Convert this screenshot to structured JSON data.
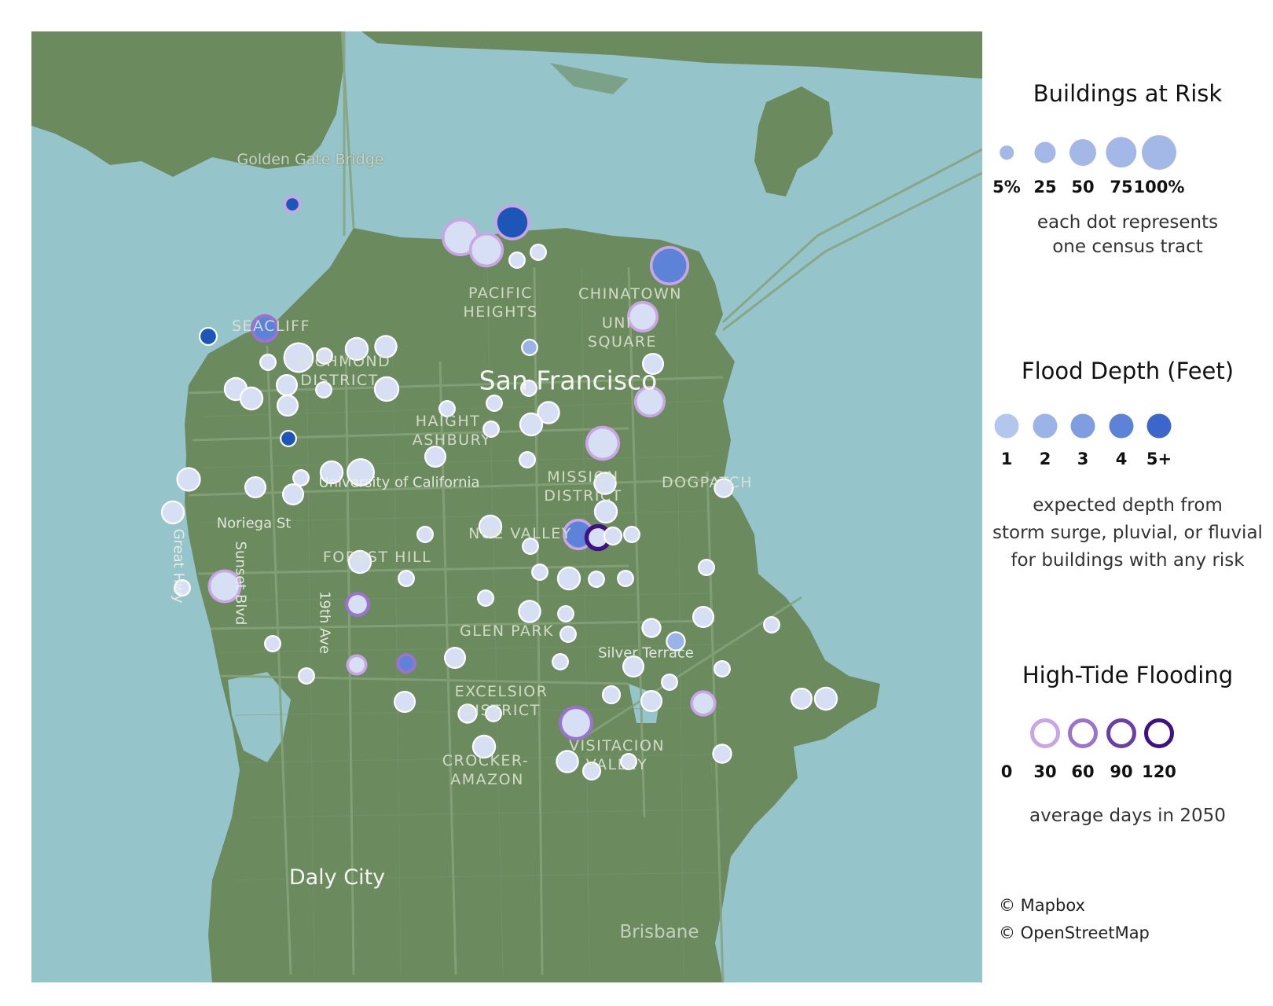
{
  "map": {
    "colors": {
      "water": "#96c4cb",
      "land": "#6b8a5e",
      "road": "#86a27a"
    },
    "labels": {
      "golden_gate": "Golden Gate Bridge",
      "pacific": "PACIFIC",
      "heights": "HEIGHTS",
      "chinatown": "CHINATOWN",
      "union": "UNI",
      "square": "SQUARE",
      "sea_cliff": "SEACLIFF",
      "richmond": "RICHMOND",
      "district_r": "DISTRICT",
      "sf": "San Francisco",
      "haight": "HAIGHT",
      "ashbury": "ASHBURY",
      "uc": "University of California",
      "mission": "MISSION",
      "district_m": "DISTRICT",
      "dogpatch": "DOGPATCH",
      "noriega": "Noriega St",
      "gh_hwy": "Great Hwy",
      "sunset": "Sunset Blvd",
      "nineteenth": "19th Ave",
      "forest_hill": "FOREST HILL",
      "noe_valley": "NOE VALLEY",
      "glen_park": "GLEN PARK",
      "silver_terrace": "Silver Terrace",
      "excelsior": "EXCELSIOR",
      "district_e": "DISTRICT",
      "visitacion": "VISITACION",
      "valley": "VALLEY",
      "crocker": "CROCKER-",
      "amazon": "AMAZON",
      "daly_city": "Daly City",
      "brisbane": "Brisbane"
    },
    "tracts": [
      {
        "risk_pct": 3,
        "depth": "5+",
        "tide_days": 30
      },
      {
        "risk_pct": 70,
        "depth": "1",
        "tide_days": 30
      },
      {
        "risk_pct": 60,
        "depth": "5+",
        "tide_days": 30
      },
      {
        "risk_pct": 55,
        "depth": "1",
        "tide_days": 30
      },
      {
        "risk_pct": 5,
        "depth": "1",
        "tide_days": 0
      },
      {
        "risk_pct": 5,
        "depth": "1",
        "tide_days": 0
      },
      {
        "risk_pct": 80,
        "depth": "4",
        "tide_days": 30
      },
      {
        "risk_pct": 40,
        "depth": "1",
        "tide_days": 30
      },
      {
        "risk_pct": 25,
        "depth": "4",
        "tide_days": 60
      },
      {
        "risk_pct": 8,
        "depth": "5+",
        "tide_days": 0
      },
      {
        "risk_pct": 45,
        "depth": "1",
        "tide_days": 0
      },
      {
        "risk_pct": 20,
        "depth": "1",
        "tide_days": 0
      },
      {
        "risk_pct": 18,
        "depth": "1",
        "tide_days": 0
      },
      {
        "risk_pct": 5,
        "depth": "1",
        "tide_days": 0
      },
      {
        "risk_pct": 5,
        "depth": "1",
        "tide_days": 0
      },
      {
        "risk_pct": 5,
        "depth": "2",
        "tide_days": 0
      },
      {
        "risk_pct": 15,
        "depth": "1",
        "tide_days": 0
      },
      {
        "risk_pct": 5,
        "depth": "1",
        "tide_days": 0
      },
      {
        "risk_pct": 20,
        "depth": "1",
        "tide_days": 0
      },
      {
        "risk_pct": 20,
        "depth": "1",
        "tide_days": 0
      },
      {
        "risk_pct": 15,
        "depth": "1",
        "tide_days": 0
      },
      {
        "risk_pct": 5,
        "depth": "1",
        "tide_days": 0
      },
      {
        "risk_pct": 25,
        "depth": "1",
        "tide_days": 0
      },
      {
        "risk_pct": 15,
        "depth": "1",
        "tide_days": 0
      },
      {
        "risk_pct": 5,
        "depth": "5+",
        "tide_days": 0
      },
      {
        "risk_pct": 5,
        "depth": "1",
        "tide_days": 0
      },
      {
        "risk_pct": 5,
        "depth": "1",
        "tide_days": 0
      },
      {
        "risk_pct": 18,
        "depth": "1",
        "tide_days": 0
      },
      {
        "risk_pct": 5,
        "depth": "1",
        "tide_days": 0
      },
      {
        "risk_pct": 20,
        "depth": "1",
        "tide_days": 0
      },
      {
        "risk_pct": 40,
        "depth": "1",
        "tide_days": 30
      },
      {
        "risk_pct": 55,
        "depth": "1",
        "tide_days": 30
      },
      {
        "risk_pct": 15,
        "depth": "1",
        "tide_days": 0
      },
      {
        "risk_pct": 5,
        "depth": "1",
        "tide_days": 0
      },
      {
        "risk_pct": 22,
        "depth": "1",
        "tide_days": 0
      },
      {
        "risk_pct": 15,
        "depth": "1",
        "tide_days": 0
      },
      {
        "risk_pct": 5,
        "depth": "1",
        "tide_days": 0
      },
      {
        "risk_pct": 20,
        "depth": "1",
        "tide_days": 0
      },
      {
        "risk_pct": 35,
        "depth": "1",
        "tide_days": 0
      },
      {
        "risk_pct": 15,
        "depth": "1",
        "tide_days": 0
      },
      {
        "risk_pct": 18,
        "depth": "1",
        "tide_days": 0
      },
      {
        "risk_pct": 10,
        "depth": "1",
        "tide_days": 0
      },
      {
        "risk_pct": 20,
        "depth": "1",
        "tide_days": 0
      },
      {
        "risk_pct": 20,
        "depth": "1",
        "tide_days": 0
      },
      {
        "risk_pct": 20,
        "depth": "1",
        "tide_days": 0
      },
      {
        "risk_pct": 5,
        "depth": "1",
        "tide_days": 0
      },
      {
        "risk_pct": 5,
        "depth": "1",
        "tide_days": 0
      },
      {
        "risk_pct": 40,
        "depth": "4",
        "tide_days": 30
      },
      {
        "risk_pct": 15,
        "depth": "1",
        "tide_days": 120
      },
      {
        "risk_pct": 8,
        "depth": "1",
        "tide_days": 0
      },
      {
        "risk_pct": 5,
        "depth": "1",
        "tide_days": 0
      },
      {
        "risk_pct": 5,
        "depth": "1",
        "tide_days": 0
      },
      {
        "risk_pct": 20,
        "depth": "1",
        "tide_days": 0
      },
      {
        "risk_pct": 5,
        "depth": "1",
        "tide_days": 0
      },
      {
        "risk_pct": 5,
        "depth": "1",
        "tide_days": 0
      },
      {
        "risk_pct": 20,
        "depth": "1",
        "tide_days": 0
      },
      {
        "risk_pct": 5,
        "depth": "1",
        "tide_days": 0
      },
      {
        "risk_pct": 5,
        "depth": "1",
        "tide_days": 0
      },
      {
        "risk_pct": 5,
        "depth": "1",
        "tide_days": 0
      },
      {
        "risk_pct": 50,
        "depth": "1",
        "tide_days": 30
      },
      {
        "risk_pct": 5,
        "depth": "1",
        "tide_days": 0
      },
      {
        "risk_pct": 15,
        "depth": "1",
        "tide_days": 60
      },
      {
        "risk_pct": 18,
        "depth": "1",
        "tide_days": 0
      },
      {
        "risk_pct": 5,
        "depth": "1",
        "tide_days": 0
      },
      {
        "risk_pct": 5,
        "depth": "1",
        "tide_days": 0
      },
      {
        "risk_pct": 15,
        "depth": "1",
        "tide_days": 0
      },
      {
        "risk_pct": 5,
        "depth": "1",
        "tide_days": 0
      },
      {
        "risk_pct": 10,
        "depth": "1",
        "tide_days": 0
      },
      {
        "risk_pct": 10,
        "depth": "2",
        "tide_days": 0
      },
      {
        "risk_pct": 5,
        "depth": "1",
        "tide_days": 0
      },
      {
        "risk_pct": 15,
        "depth": "1",
        "tide_days": 0
      },
      {
        "risk_pct": 8,
        "depth": "1",
        "tide_days": 30
      },
      {
        "risk_pct": 5,
        "depth": "4",
        "tide_days": 60
      },
      {
        "risk_pct": 5,
        "depth": "1",
        "tide_days": 0
      },
      {
        "risk_pct": 5,
        "depth": "1",
        "tide_days": 0
      },
      {
        "risk_pct": 15,
        "depth": "1",
        "tide_days": 0
      },
      {
        "risk_pct": 5,
        "depth": "1",
        "tide_days": 0
      },
      {
        "risk_pct": 5,
        "depth": "1",
        "tide_days": 0
      },
      {
        "risk_pct": 15,
        "depth": "1",
        "tide_days": 0
      },
      {
        "risk_pct": 5,
        "depth": "1",
        "tide_days": 0
      },
      {
        "risk_pct": 8,
        "depth": "1",
        "tide_days": 0
      },
      {
        "risk_pct": 15,
        "depth": "1",
        "tide_days": 0
      },
      {
        "risk_pct": 20,
        "depth": "1",
        "tide_days": 30
      },
      {
        "risk_pct": 10,
        "depth": "1",
        "tide_days": 0
      },
      {
        "risk_pct": 50,
        "depth": "1",
        "tide_days": 60
      },
      {
        "risk_pct": 20,
        "depth": "1",
        "tide_days": 0
      },
      {
        "risk_pct": 18,
        "depth": "1",
        "tide_days": 0
      },
      {
        "risk_pct": 8,
        "depth": "1",
        "tide_days": 0
      },
      {
        "risk_pct": 5,
        "depth": "1",
        "tide_days": 0
      },
      {
        "risk_pct": 10,
        "depth": "1",
        "tide_days": 0
      },
      {
        "risk_pct": 15,
        "depth": "1",
        "tide_days": 0
      },
      {
        "risk_pct": 20,
        "depth": "1",
        "tide_days": 0
      },
      {
        "risk_pct": 5,
        "depth": "1",
        "tide_days": 0
      },
      {
        "risk_pct": 5,
        "depth": "1",
        "tide_days": 0
      },
      {
        "risk_pct": 5,
        "depth": "1",
        "tide_days": 30
      }
    ]
  },
  "legend": {
    "buildings": {
      "title": "Buildings at Risk",
      "labels": [
        "5%",
        "25",
        "50",
        "75",
        "100%"
      ],
      "note_line1": "each dot represents",
      "note_line2": "one census tract",
      "color": "#a3b8e6"
    },
    "depth": {
      "title": "Flood Depth (Feet)",
      "labels": [
        "1",
        "2",
        "3",
        "4",
        "5+"
      ],
      "colors": [
        "#b3c7ee",
        "#9ab4e8",
        "#7e9ee0",
        "#5c83d7",
        "#3a67c9"
      ],
      "note_line1": "expected depth from",
      "note_line2": "storm surge, pluvial, or fluvial",
      "note_line3": "for buildings with any risk"
    },
    "tide": {
      "title": "High-Tide Flooding",
      "labels": [
        "0",
        "30",
        "60",
        "90",
        "120"
      ],
      "colors": [
        "#ffffff",
        "#c9a5e6",
        "#9a73cc",
        "#6b3fa8",
        "#3e1283"
      ],
      "note": "average days in 2050"
    }
  },
  "credits": {
    "mapbox": "© Mapbox",
    "osm": "© OpenStreetMap"
  }
}
